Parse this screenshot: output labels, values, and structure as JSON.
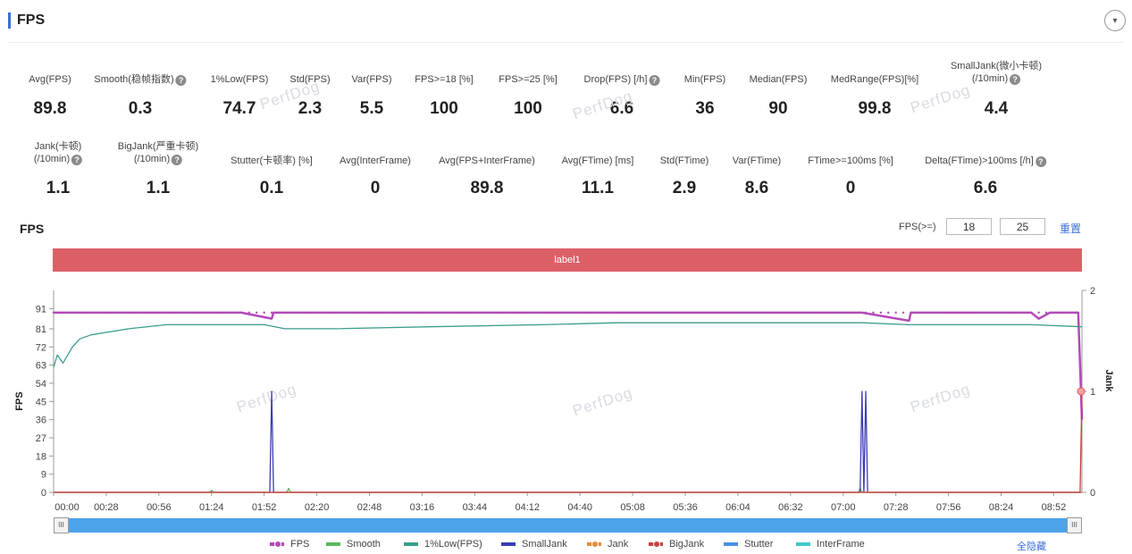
{
  "header": {
    "title": "FPS",
    "collapse_icon": "▾"
  },
  "metrics_row1": [
    {
      "label": "Avg(FPS)",
      "value": "89.8",
      "help": false
    },
    {
      "label": "Smooth(稳帧指数)",
      "value": "0.3",
      "help": true
    },
    {
      "label": "1%Low(FPS)",
      "value": "74.7",
      "help": false
    },
    {
      "label": "Std(FPS)",
      "value": "2.3",
      "help": false
    },
    {
      "label": "Var(FPS)",
      "value": "5.5",
      "help": false
    },
    {
      "label": "FPS>=18 [%]",
      "value": "100",
      "help": false
    },
    {
      "label": "FPS>=25 [%]",
      "value": "100",
      "help": false
    },
    {
      "label": "Drop(FPS) [/h]",
      "value": "6.6",
      "help": true
    },
    {
      "label": "Min(FPS)",
      "value": "36",
      "help": false
    },
    {
      "label": "Median(FPS)",
      "value": "90",
      "help": false
    },
    {
      "label": "MedRange(FPS)[%]",
      "value": "99.8",
      "help": false
    },
    {
      "label": "SmallJank(微小卡顿)",
      "label2": "(/10min)",
      "value": "4.4",
      "help": true
    }
  ],
  "metrics_row2": [
    {
      "label": "Jank(卡顿)",
      "label2": "(/10min)",
      "value": "1.1",
      "help": true
    },
    {
      "label": "BigJank(严重卡顿)",
      "label2": "(/10min)",
      "value": "1.1",
      "help": true
    },
    {
      "label": "Stutter(卡顿率) [%]",
      "value": "0.1",
      "help": false
    },
    {
      "label": "Avg(InterFrame)",
      "value": "0",
      "help": false
    },
    {
      "label": "Avg(FPS+InterFrame)",
      "value": "89.8",
      "help": false
    },
    {
      "label": "Avg(FTime) [ms]",
      "value": "11.1",
      "help": false
    },
    {
      "label": "Std(FTime)",
      "value": "2.9",
      "help": false
    },
    {
      "label": "Var(FTime)",
      "value": "8.6",
      "help": false
    },
    {
      "label": "FTime>=100ms [%]",
      "value": "0",
      "help": false
    },
    {
      "label": "Delta(FTime)>100ms [/h]",
      "value": "6.6",
      "help": true
    }
  ],
  "help_glyph": "?",
  "watermark_text": "PerfDog",
  "chart_panel": {
    "title": "FPS",
    "threshold_label": "FPS(>=)",
    "threshold_low": "18",
    "threshold_high": "25",
    "reset_label": "重置",
    "band_label": "label1"
  },
  "chart_data": {
    "type": "line",
    "title": "FPS",
    "ylabel": "FPS",
    "y2label": "Jank",
    "ylim": [
      0,
      100
    ],
    "y2lim": [
      0,
      2
    ],
    "yticks": [
      0,
      9,
      18,
      27,
      36,
      45,
      54,
      63,
      72,
      81,
      91
    ],
    "y2ticks": [
      0,
      1,
      2
    ],
    "xticks": [
      "00:00",
      "00:28",
      "00:56",
      "01:24",
      "01:52",
      "02:20",
      "02:48",
      "03:16",
      "03:44",
      "04:12",
      "04:40",
      "05:08",
      "05:36",
      "06:04",
      "06:32",
      "07:00",
      "07:28",
      "07:56",
      "08:24",
      "08:52"
    ],
    "duration_s": 547,
    "series": [
      {
        "name": "FPS",
        "color": "#b24ab8",
        "points": [
          [
            0,
            89
          ],
          [
            60,
            89
          ],
          [
            100,
            89
          ],
          [
            116,
            86
          ],
          [
            117,
            89
          ],
          [
            200,
            89
          ],
          [
            260,
            89
          ],
          [
            300,
            89
          ],
          [
            380,
            89
          ],
          [
            430,
            89
          ],
          [
            455,
            85
          ],
          [
            456,
            89
          ],
          [
            500,
            89
          ],
          [
            520,
            89
          ],
          [
            524,
            86
          ],
          [
            530,
            89
          ],
          [
            545,
            89
          ],
          [
            547,
            36
          ]
        ]
      },
      {
        "name": "Smooth",
        "color": "#5cb85c",
        "points": [
          [
            0,
            0
          ],
          [
            83,
            0
          ],
          [
            84,
            1
          ],
          [
            85,
            0
          ],
          [
            124,
            0
          ],
          [
            125,
            2
          ],
          [
            126,
            0
          ],
          [
            428,
            0
          ],
          [
            429,
            2
          ],
          [
            430,
            0
          ],
          [
            547,
            0
          ]
        ]
      },
      {
        "name": "1%Low(FPS)",
        "color": "#3a9e8c",
        "points": [
          [
            0,
            62
          ],
          [
            2,
            68
          ],
          [
            5,
            64
          ],
          [
            10,
            72
          ],
          [
            14,
            76
          ],
          [
            20,
            78
          ],
          [
            40,
            81
          ],
          [
            60,
            83
          ],
          [
            80,
            83
          ],
          [
            90,
            83
          ],
          [
            112,
            83
          ],
          [
            123,
            81
          ],
          [
            150,
            81
          ],
          [
            200,
            82
          ],
          [
            260,
            83
          ],
          [
            300,
            84
          ],
          [
            350,
            84
          ],
          [
            400,
            84
          ],
          [
            430,
            84
          ],
          [
            455,
            83
          ],
          [
            500,
            83
          ],
          [
            520,
            83
          ],
          [
            547,
            82
          ]
        ]
      },
      {
        "name": "SmallJank",
        "color": "#3c3cb4",
        "points": [
          [
            0,
            0
          ],
          [
            115,
            0
          ],
          [
            116,
            1
          ],
          [
            117,
            0
          ],
          [
            429,
            0
          ],
          [
            430,
            1
          ],
          [
            431,
            0
          ],
          [
            432,
            1
          ],
          [
            433,
            0
          ],
          [
            547,
            0
          ]
        ]
      },
      {
        "name": "Jank",
        "color": "#e38d3b",
        "points": [
          [
            0,
            0
          ],
          [
            547,
            0
          ]
        ]
      },
      {
        "name": "BigJank",
        "color": "#c9413c",
        "points": [
          [
            0,
            0
          ],
          [
            546,
            0
          ],
          [
            547,
            1
          ]
        ]
      },
      {
        "name": "Stutter",
        "color": "#4a90e2",
        "points": []
      },
      {
        "name": "InterFrame",
        "color": "#45c7c7",
        "points": []
      }
    ]
  },
  "legend": {
    "items": [
      {
        "name": "FPS",
        "color": "#b24ab8",
        "dot": true
      },
      {
        "name": "Smooth",
        "color": "#5cb85c",
        "dot": false
      },
      {
        "name": "1%Low(FPS)",
        "color": "#3a9e8c",
        "dot": false
      },
      {
        "name": "SmallJank",
        "color": "#3c3cb4",
        "dot": false
      },
      {
        "name": "Jank",
        "color": "#e38d3b",
        "dot": true
      },
      {
        "name": "BigJank",
        "color": "#c9413c",
        "dot": true
      },
      {
        "name": "Stutter",
        "color": "#4a90e2",
        "dot": false
      },
      {
        "name": "InterFrame",
        "color": "#45c7c7",
        "dot": false
      }
    ],
    "hide_all": "全隐藏"
  },
  "scroller": {
    "handle_glyph": "III"
  }
}
